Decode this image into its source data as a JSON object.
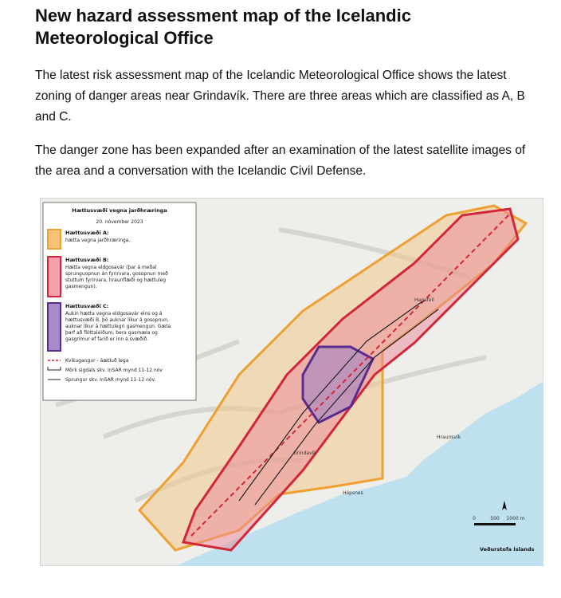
{
  "header": {
    "title": "New hazard assessment map of the Icelandic Meteorological Office"
  },
  "paragraphs": [
    "The latest risk assessment map of the Icelandic Meteorological Office shows the latest zoning of danger areas near Grindavík. There are three areas which are classified as A, B and C.",
    "The danger zone has been expanded after an examination of the latest satellite images of the area and a conversation with the Icelandic Civil Defense."
  ],
  "map": {
    "legend": {
      "title": "Hættusvæði vegna jarðhræringa",
      "date": "20. nóvember 2023",
      "zones": [
        {
          "name": "Hættusvæði A:",
          "lines": [
            "hætta vegna jarðhræringa."
          ]
        },
        {
          "name": "Hættusvæði B:",
          "lines": [
            "Hætta vegna eldgosavár (þar á meðal",
            "sprunguopnun án fyrirvara, gosopnun með",
            "stuttum fyrirvara, hraunflæði og hættuleg",
            "gasmengun)."
          ]
        },
        {
          "name": "Hættusvæði C:",
          "lines": [
            "Aukin hætta vegna eldgosavár eins og á",
            "hættusvæði B, þó auknar líkur á gosopnun,",
            "auknar líkur á hættulegri gasmengun. Gæta",
            "þarf að flóttaleiðum, bera gasmæla og",
            "gasgrímur ef farið er inn á svæðið."
          ]
        }
      ],
      "symbols": [
        "Kvikugangur - áætluð lega",
        "Mörk sigdals skv. InSAR mynd 11-12 nóv",
        "Sprungur skv. InSAR mynd 11-12 nóv."
      ]
    },
    "places": [
      "Grindavík",
      "Hópsnes",
      "Hraunsvík",
      "Hagafell"
    ],
    "scale": [
      "0",
      "500",
      "1000 m"
    ],
    "logo": "Veðurstofa Íslands"
  }
}
